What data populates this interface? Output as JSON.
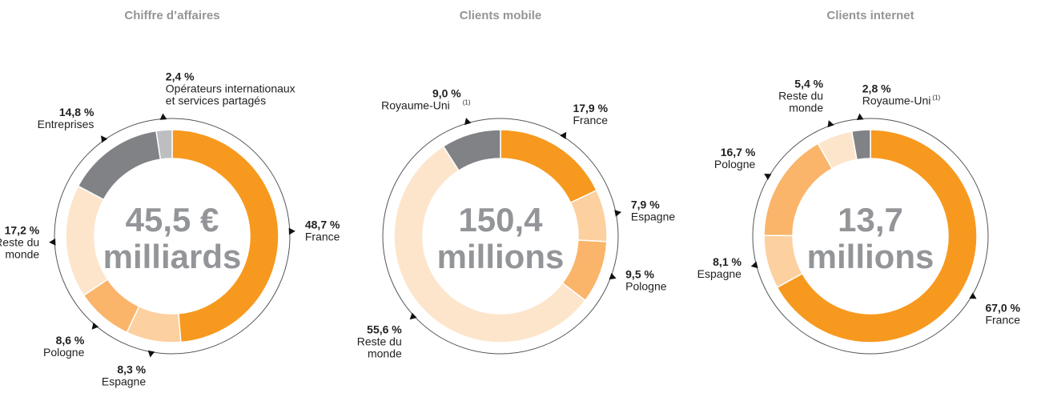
{
  "chart_data": [
    {
      "type": "pie",
      "title": "Chiffre d’affaires",
      "center_label": [
        "45,5 €",
        "milliards"
      ],
      "categories": [
        "France",
        "Espagne",
        "Pologne",
        "Reste du\nmonde",
        "Entreprises",
        "Opérateurs internationaux\net services partagés"
      ],
      "category_notes": [
        null,
        null,
        null,
        null,
        null,
        null
      ],
      "values": [
        48.7,
        8.3,
        8.6,
        17.2,
        14.8,
        2.4
      ],
      "value_labels": [
        "48,7 %",
        "8,3 %",
        "8,6 %",
        "17,2 %",
        "14,8 %",
        "2,4 %"
      ],
      "colors": [
        "#f7991f",
        "#fdd0a0",
        "#fab56a",
        "#fde5cc",
        "#808285",
        "#bcbec0"
      ]
    },
    {
      "type": "pie",
      "title": "Clients mobile",
      "center_label": [
        "150,4",
        "millions"
      ],
      "categories": [
        "France",
        "Espagne",
        "Pologne",
        "Reste du\nmonde",
        "Royaume-Uni"
      ],
      "category_notes": [
        null,
        null,
        null,
        null,
        "(1)"
      ],
      "values": [
        17.9,
        7.9,
        9.5,
        55.6,
        9.0
      ],
      "value_labels": [
        "17,9 %",
        "7,9 %",
        "9,5 %",
        "55,6 %",
        "9,0 %"
      ],
      "colors": [
        "#f7991f",
        "#fdd0a0",
        "#fab56a",
        "#fde5cc",
        "#808285"
      ]
    },
    {
      "type": "pie",
      "title": "Clients internet",
      "center_label": [
        "13,7",
        "millions"
      ],
      "categories": [
        "France",
        "Espagne",
        "Pologne",
        "Reste du\nmonde",
        "Royaume-Uni"
      ],
      "category_notes": [
        null,
        null,
        null,
        null,
        "(1)"
      ],
      "values": [
        67.0,
        8.1,
        16.7,
        5.4,
        2.8
      ],
      "value_labels": [
        "67,0 %",
        "8,1 %",
        "16,7 %",
        "5,4 %",
        "2,8 %"
      ],
      "colors": [
        "#f7991f",
        "#fdd0a0",
        "#fab56a",
        "#fde5cc",
        "#808285"
      ]
    }
  ]
}
